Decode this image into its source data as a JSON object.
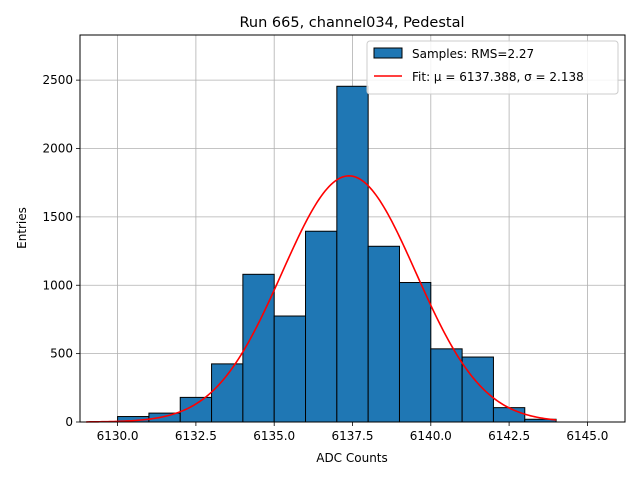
{
  "chart_data": {
    "type": "bar",
    "title": "Run 665, channel034, Pedestal",
    "xlabel": "ADC Counts",
    "ylabel": "Entries",
    "xlim": [
      6128.8,
      6146.2
    ],
    "ylim": [
      0,
      2830
    ],
    "xticks": [
      6130.0,
      6132.5,
      6135.0,
      6137.5,
      6140.0,
      6142.5,
      6145.0
    ],
    "xtick_labels": [
      "6130.0",
      "6132.5",
      "6135.0",
      "6137.5",
      "6140.0",
      "6142.5",
      "6145.0"
    ],
    "yticks": [
      0,
      500,
      1000,
      1500,
      2000,
      2500
    ],
    "ytick_labels": [
      "0",
      "500",
      "1000",
      "1500",
      "2000",
      "2500"
    ],
    "grid": true,
    "legend_position": "top-right",
    "histogram": {
      "name": "Samples: RMS=2.27",
      "color": "#1f77b4",
      "edgecolor": "#000000",
      "bin_edges": [
        6130,
        6131,
        6132,
        6133,
        6134,
        6135,
        6136,
        6137,
        6138,
        6139,
        6140,
        6141,
        6142,
        6143,
        6144
      ],
      "counts": [
        40,
        65,
        180,
        425,
        1080,
        775,
        1395,
        2455,
        1285,
        1020,
        535,
        475,
        105,
        20
      ]
    },
    "fit": {
      "name": "Fit: μ = 6137.388, σ = 2.138",
      "color": "#ff0000",
      "mu": 6137.388,
      "sigma": 2.138,
      "amplitude": 1800,
      "x_range": [
        6129.0,
        6144.0
      ]
    }
  }
}
